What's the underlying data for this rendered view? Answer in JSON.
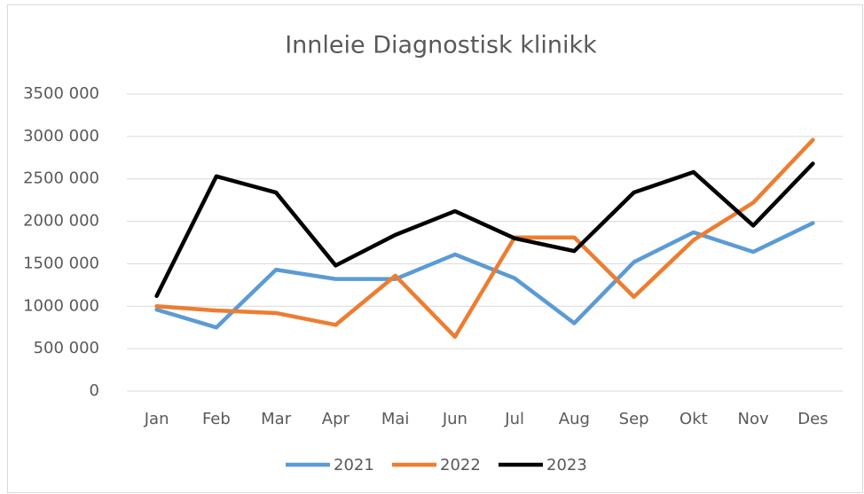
{
  "chart_data": {
    "type": "line",
    "title": "Innleie Diagnostisk klinikk",
    "categories": [
      "Jan",
      "Feb",
      "Mar",
      "Apr",
      "Mai",
      "Jun",
      "Jul",
      "Aug",
      "Sep",
      "Okt",
      "Nov",
      "Des"
    ],
    "series": [
      {
        "name": "2021",
        "color": "#5b9bd5",
        "values": [
          960000,
          750000,
          1430000,
          1320000,
          1320000,
          1610000,
          1330000,
          800000,
          1520000,
          1870000,
          1640000,
          1980000
        ]
      },
      {
        "name": "2022",
        "color": "#ed7d31",
        "values": [
          1000000,
          950000,
          920000,
          780000,
          1360000,
          640000,
          1810000,
          1810000,
          1110000,
          1780000,
          2220000,
          2960000
        ]
      },
      {
        "name": "2023",
        "color": "#000000",
        "values": [
          1120000,
          2530000,
          2340000,
          1480000,
          1840000,
          2120000,
          1800000,
          1650000,
          2340000,
          2580000,
          1950000,
          2680000
        ]
      }
    ],
    "ylim": [
      0,
      3500000
    ],
    "yticks": [
      0,
      {
        "value": 500000,
        "label": "500 000"
      },
      {
        "value": 1000000,
        "label": "1000 000"
      },
      {
        "value": 1500000,
        "label": "1500 000"
      },
      {
        "value": 2000000,
        "label": "2000 000"
      },
      {
        "value": 2500000,
        "label": "2500 000"
      },
      {
        "value": 3000000,
        "label": "3000 000"
      },
      {
        "value": 3500000,
        "label": "3500 000"
      }
    ],
    "grid": true,
    "legend": "bottom"
  }
}
